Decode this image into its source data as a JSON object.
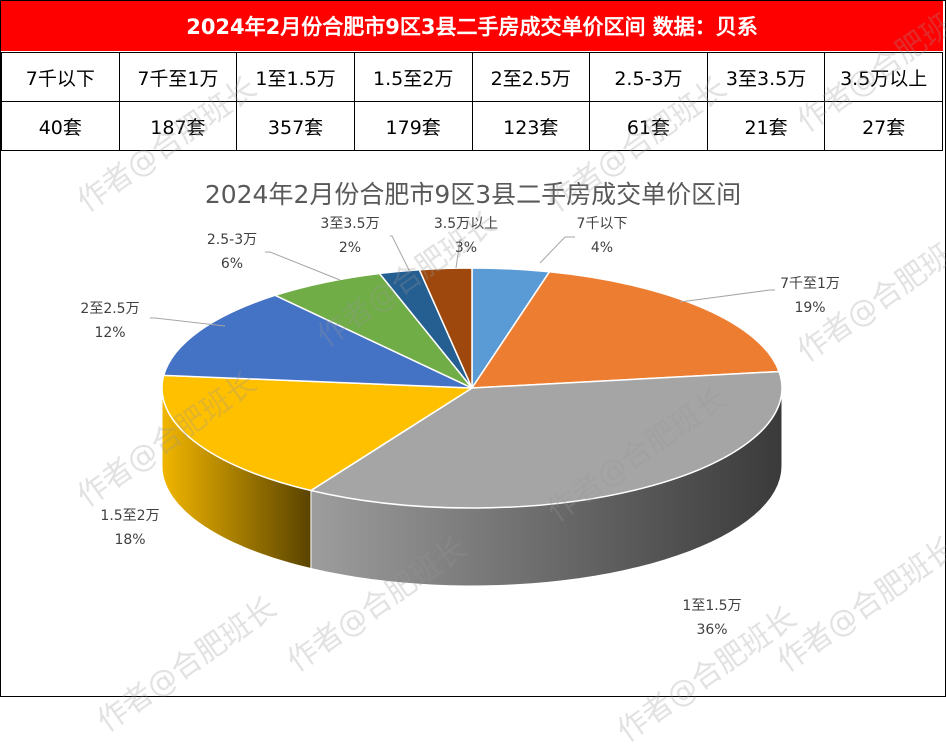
{
  "table": {
    "title": "2024年2月份合肥市9区3县二手房成交单价区间 数据：贝系",
    "headers": [
      "7千以下",
      "7千至1万",
      "1至1.5万",
      "1.5至2万",
      "2至2.5万",
      "2.5-3万",
      "3至3.5万",
      "3.5万以上"
    ],
    "values": [
      "40套",
      "187套",
      "357套",
      "179套",
      "123套",
      "61套",
      "21套",
      "27套"
    ]
  },
  "chart_data": {
    "type": "pie",
    "title": "2024年2月份合肥市9区3县二手房成交单价区间",
    "categories": [
      "7千以下",
      "7千至1万",
      "1至1.5万",
      "1.5至2万",
      "2至2.5万",
      "2.5-3万",
      "3至3.5万",
      "3.5万以上"
    ],
    "values": [
      40,
      187,
      357,
      179,
      123,
      61,
      21,
      27
    ],
    "percent_labels": [
      "4%",
      "19%",
      "36%",
      "18%",
      "12%",
      "6%",
      "2%",
      "3%"
    ],
    "colors": [
      "#5b9bd5",
      "#ed7d31",
      "#a5a5a5",
      "#ffc000",
      "#4472c4",
      "#70ad47",
      "#255e91",
      "#9e480e"
    ],
    "style": "3d-tilted",
    "legend": "none"
  },
  "watermark": "作者@合肥班长"
}
